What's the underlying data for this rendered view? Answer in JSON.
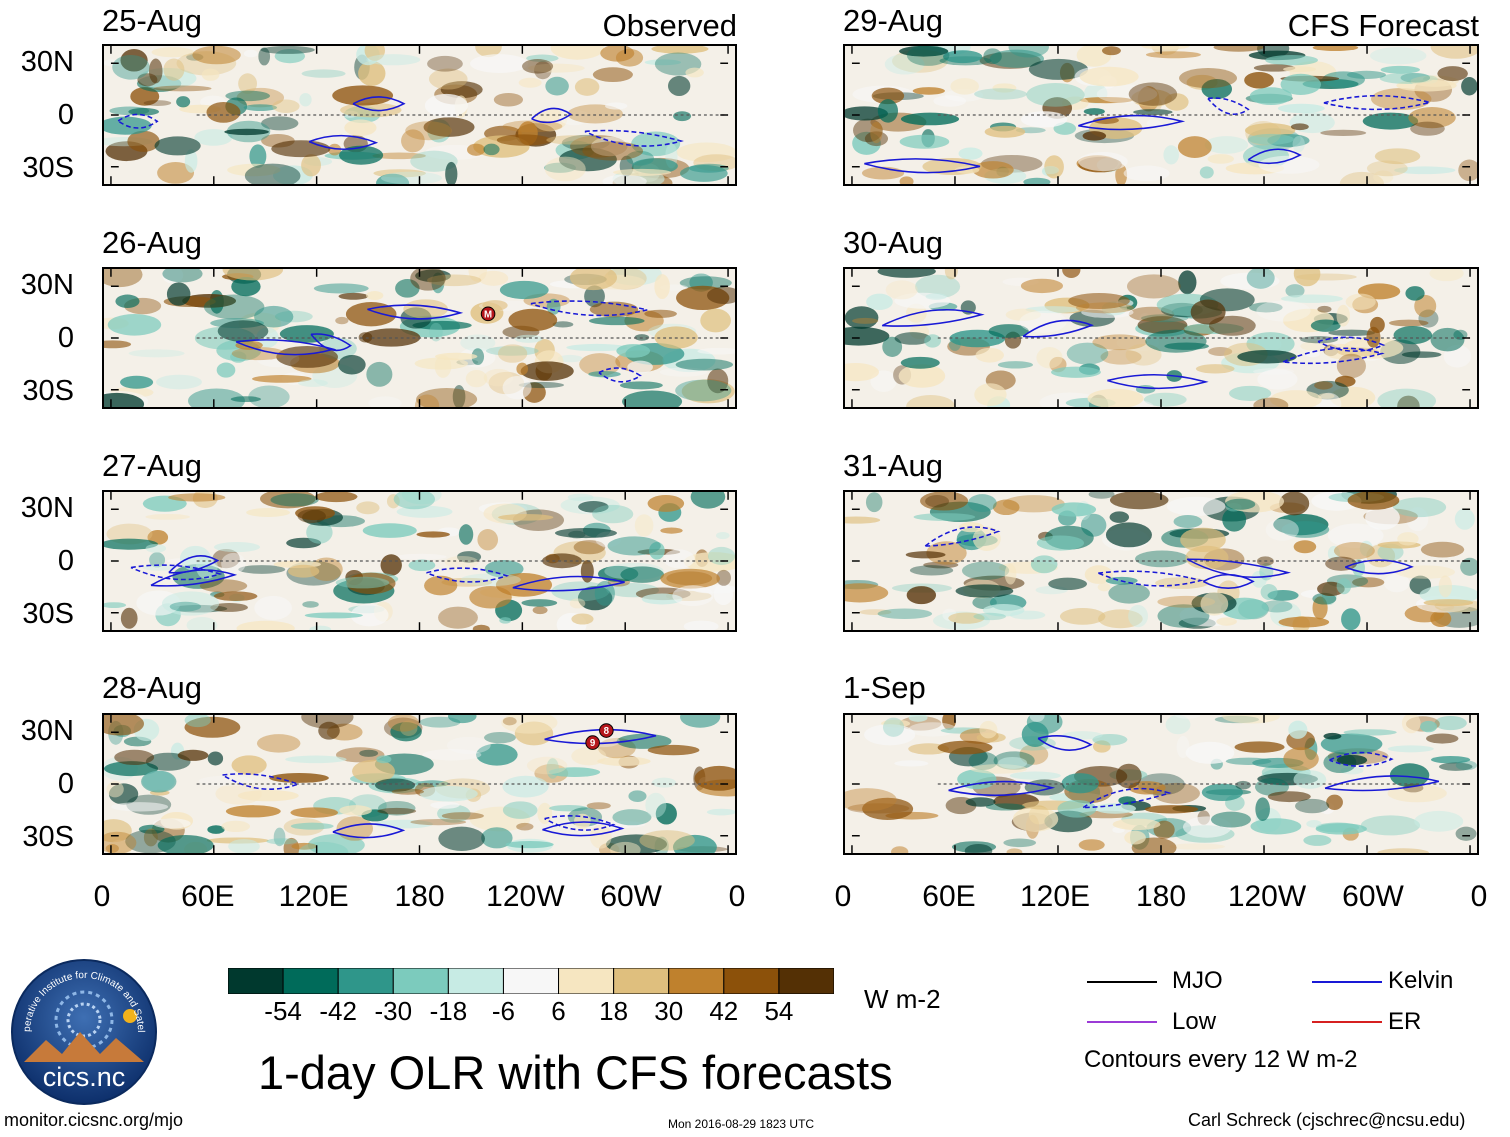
{
  "chart_data": {
    "type": "heatmap",
    "title": "1-day OLR with CFS forecasts",
    "variable": "OLR anomaly",
    "units": "W m-2",
    "columns": [
      {
        "header": "Observed",
        "dates": [
          "25-Aug",
          "26-Aug",
          "27-Aug",
          "28-Aug"
        ]
      },
      {
        "header": "CFS Forecast",
        "dates": [
          "29-Aug",
          "30-Aug",
          "31-Aug",
          "1-Sep"
        ]
      }
    ],
    "lat_ticks": [
      "30N",
      "0",
      "30S"
    ],
    "lat_range": [
      -40,
      40
    ],
    "lon_ticks": [
      "0",
      "60E",
      "120E",
      "180",
      "120W",
      "60W",
      "0"
    ],
    "lon_range": [
      0,
      360
    ],
    "colorbar": {
      "ticks": [
        "-54",
        "-42",
        "-30",
        "-18",
        "-6",
        "6",
        "18",
        "30",
        "42",
        "54"
      ],
      "colors": [
        "#00392e",
        "#006b5a",
        "#2f968a",
        "#7ccbbd",
        "#c7ebe4",
        "#f7f7f7",
        "#f6e6c1",
        "#dfbf7e",
        "#bf812d",
        "#8c510a",
        "#543005"
      ]
    },
    "contour_legend": [
      {
        "label": "MJO",
        "color": "#000000"
      },
      {
        "label": "Kelvin",
        "color": "#1919d6"
      },
      {
        "label": "Low",
        "color": "#9b3bd6"
      },
      {
        "label": "ER",
        "color": "#d62020"
      }
    ],
    "contour_note": "Contours every 12 W m-2",
    "storm_markers": [
      {
        "panel": "26-Aug",
        "label": "M",
        "lon": 220,
        "lat": 14
      },
      {
        "panel": "28-Aug",
        "label": "9",
        "lon": 281,
        "lat": 24
      },
      {
        "panel": "28-Aug",
        "label": "8",
        "lon": 289,
        "lat": 31
      }
    ]
  },
  "org_logo_text": "Cooperative Institute for Climate and Satellites",
  "org_logo_name": "cics.nc",
  "footer": {
    "url": "monitor.cicsnc.org/mjo",
    "timestamp": "Mon 2016-08-29 1823 UTC",
    "credit": "Carl Schreck (cjschrec@ncsu.edu)"
  }
}
